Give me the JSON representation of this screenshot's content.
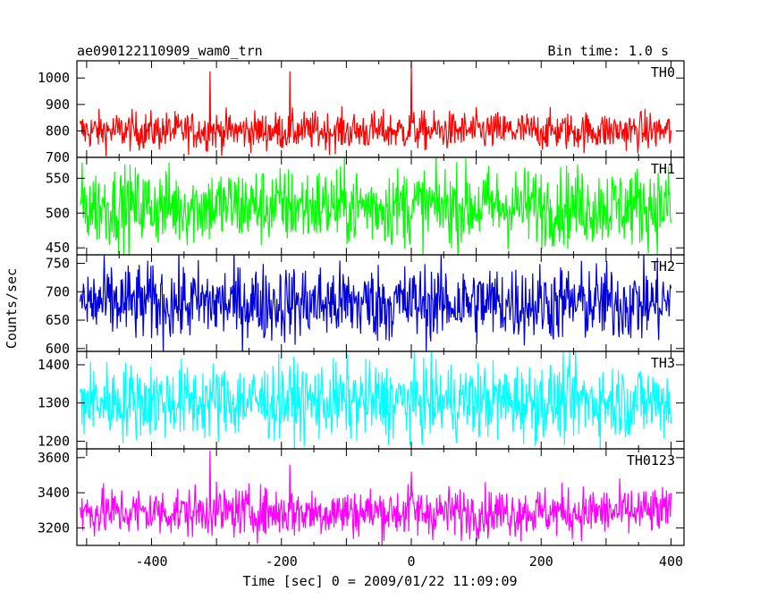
{
  "chart_data": {
    "type": "line",
    "title": "ae090122110909_wam0_trn",
    "bin_time_label": "Bin time: 1.0 s",
    "xlabel": "Time [sec] 0 = 2009/01/22 11:09:09",
    "ylabel": "Counts/sec",
    "xlim": [
      -515,
      420
    ],
    "x_ticks": [
      -400,
      -200,
      0,
      200,
      400
    ],
    "bin_seconds": 1.0,
    "data_start": -510,
    "data_end": 400,
    "panels": [
      {
        "name": "TH0",
        "color": "#ff0000",
        "ylim": [
          700,
          1065
        ],
        "y_ticks": [
          700,
          800,
          900,
          1000
        ],
        "mean": 800,
        "noise": 36,
        "spikes": [
          {
            "x": -310,
            "y": 1025
          },
          {
            "x": -187,
            "y": 1025
          },
          {
            "x": 0,
            "y": 1065
          }
        ]
      },
      {
        "name": "TH1",
        "color": "#00ff00",
        "ylim": [
          440,
          580
        ],
        "y_ticks": [
          450,
          500,
          550
        ],
        "mean": 510,
        "noise": 28,
        "spikes": []
      },
      {
        "name": "TH2",
        "color": "#0000dd",
        "ylim": [
          595,
          765
        ],
        "y_ticks": [
          600,
          650,
          700,
          750
        ],
        "mean": 680,
        "noise": 34,
        "spikes": []
      },
      {
        "name": "TH3",
        "color": "#00ffff",
        "ylim": [
          1180,
          1435
        ],
        "y_ticks": [
          1200,
          1300,
          1400
        ],
        "mean": 1305,
        "noise": 50,
        "spikes": []
      },
      {
        "name": "TH0123",
        "color": "#ff00ff",
        "ylim": [
          3100,
          3650
        ],
        "y_ticks": [
          3200,
          3400,
          3600
        ],
        "mean": 3290,
        "noise": 70,
        "spikes": [
          {
            "x": -310,
            "y": 3640
          },
          {
            "x": -187,
            "y": 3560
          },
          {
            "x": 0,
            "y": 3520
          }
        ]
      }
    ]
  }
}
